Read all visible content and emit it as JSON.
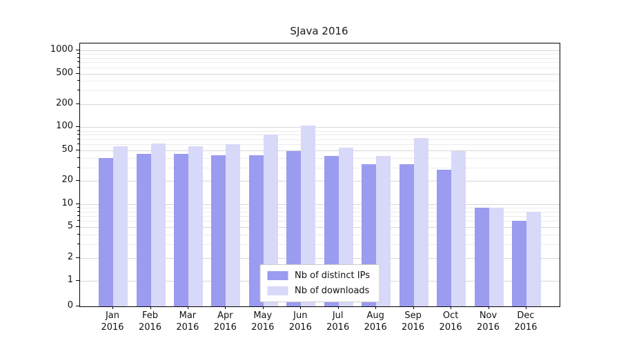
{
  "chart_data": {
    "type": "bar",
    "title": "SJava 2016",
    "categories": [
      "Jan 2016",
      "Feb 2016",
      "Mar 2016",
      "Apr 2016",
      "May 2016",
      "Jun 2016",
      "Jul 2016",
      "Aug 2016",
      "Sep 2016",
      "Oct 2016",
      "Nov 2016",
      "Dec 2016"
    ],
    "series": [
      {
        "name": "Nb of distinct IPs",
        "color": "#9b9bf0",
        "values": [
          40,
          45,
          45,
          43,
          43,
          49,
          42,
          33,
          33,
          28,
          9,
          6
        ]
      },
      {
        "name": "Nb of downloads",
        "color": "#d8d8f9",
        "values": [
          57,
          62,
          57,
          60,
          80,
          105,
          54,
          42,
          73,
          49,
          9,
          8
        ]
      }
    ],
    "yscale": "symlog",
    "ylabel": "",
    "xlabel": "",
    "yticks": [
      0,
      1,
      2,
      5,
      10,
      20,
      50,
      100,
      200,
      500,
      1000
    ],
    "yticks_minor": [
      3,
      4,
      6,
      7,
      8,
      9,
      30,
      40,
      60,
      70,
      80,
      90,
      300,
      400,
      600,
      700,
      800,
      900
    ],
    "ylim": [
      0,
      1230
    ],
    "grid": true,
    "legend_position": "lower center"
  }
}
